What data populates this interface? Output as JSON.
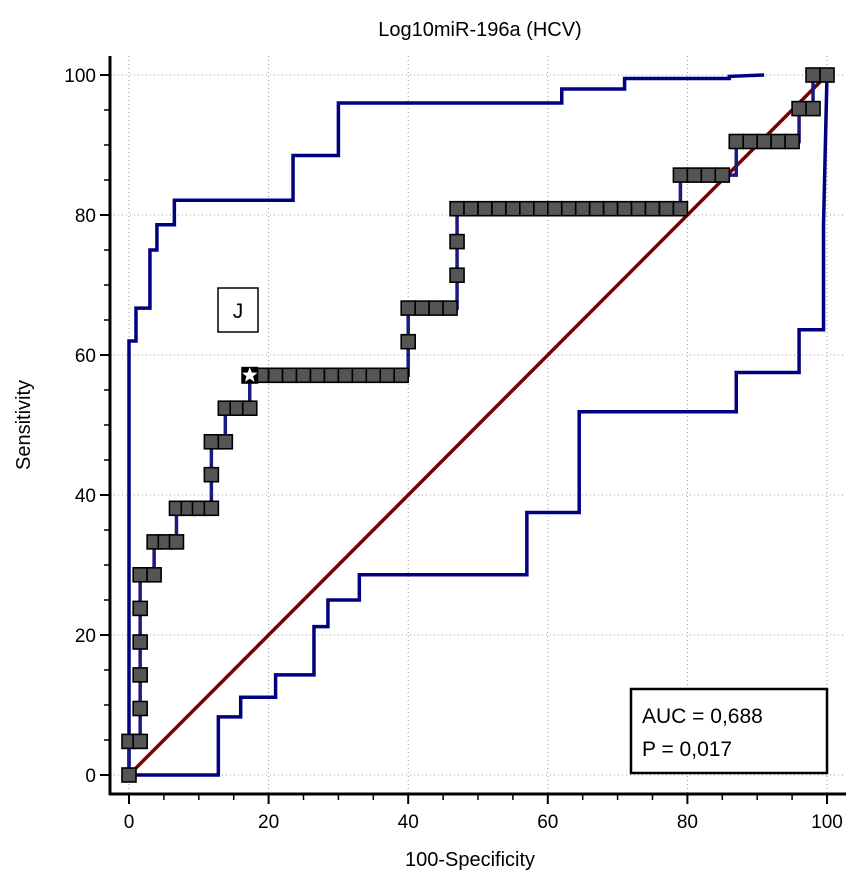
{
  "chart_data": {
    "type": "line",
    "title": "Log10miR-196a (HCV)",
    "xlabel": "100-Specificity",
    "ylabel": "Sensitivity",
    "xlim": [
      0,
      100
    ],
    "ylim": [
      0,
      100
    ],
    "x_ticks": [
      "0",
      "20",
      "40",
      "60",
      "80",
      "100"
    ],
    "y_ticks": [
      "0",
      "20",
      "40",
      "60",
      "80",
      "100"
    ],
    "grid": true,
    "panel_label": "J",
    "stats": [
      "AUC = 0,688",
      "P = 0,017"
    ],
    "colors": {
      "roc": "#1a1a80",
      "ci": "#000080",
      "diagonal": "#7a0000",
      "marker": "#555555"
    },
    "series": [
      {
        "role": "roc-curve",
        "points": [
          [
            0,
            0
          ],
          [
            0,
            4.8
          ],
          [
            1.6,
            4.8
          ],
          [
            1.6,
            28.6
          ],
          [
            3.6,
            28.6
          ],
          [
            3.6,
            33.3
          ],
          [
            6.8,
            33.3
          ],
          [
            6.8,
            38.1
          ],
          [
            11.8,
            38.1
          ],
          [
            11.8,
            47.6
          ],
          [
            13.8,
            47.6
          ],
          [
            13.8,
            52.4
          ],
          [
            17.3,
            52.4
          ],
          [
            17.3,
            57.1
          ],
          [
            40,
            57.1
          ],
          [
            40,
            66.7
          ],
          [
            47,
            66.7
          ],
          [
            47,
            80.9
          ],
          [
            79,
            80.9
          ],
          [
            79,
            85.7
          ],
          [
            87,
            85.7
          ],
          [
            87,
            90.5
          ],
          [
            96,
            90.5
          ],
          [
            96,
            95.2
          ],
          [
            98,
            95.2
          ],
          [
            98,
            100
          ],
          [
            100,
            100
          ]
        ]
      },
      {
        "role": "ci-upper",
        "points": [
          [
            0,
            0
          ],
          [
            0,
            62
          ],
          [
            1,
            62
          ],
          [
            1,
            66.7
          ],
          [
            3,
            66.7
          ],
          [
            3,
            75
          ],
          [
            4,
            75
          ],
          [
            4,
            78.6
          ],
          [
            6.5,
            78.6
          ],
          [
            6.5,
            82.1
          ],
          [
            23.5,
            82.1
          ],
          [
            23.5,
            88.5
          ],
          [
            30,
            88.5
          ],
          [
            30,
            96
          ],
          [
            62,
            96
          ],
          [
            62,
            98
          ],
          [
            71,
            98
          ],
          [
            71,
            99.5
          ],
          [
            86,
            99.5
          ],
          [
            86,
            99.8
          ],
          [
            91,
            100
          ]
        ]
      },
      {
        "role": "ci-lower",
        "points": [
          [
            0,
            0
          ],
          [
            12.8,
            0
          ],
          [
            12.8,
            8.3
          ],
          [
            16,
            8.3
          ],
          [
            16,
            11.1
          ],
          [
            21,
            11.1
          ],
          [
            21,
            14.3
          ],
          [
            26.5,
            14.3
          ],
          [
            26.5,
            21.2
          ],
          [
            28.5,
            21.2
          ],
          [
            28.5,
            25
          ],
          [
            33,
            25
          ],
          [
            33,
            28.6
          ],
          [
            57,
            28.6
          ],
          [
            57,
            37.5
          ],
          [
            64.5,
            37.5
          ],
          [
            64.5,
            51.9
          ],
          [
            87,
            51.9
          ],
          [
            87,
            57.5
          ],
          [
            96,
            57.5
          ],
          [
            96,
            63.6
          ],
          [
            99.5,
            63.6
          ],
          [
            99.5,
            78.6
          ],
          [
            100,
            100
          ]
        ]
      },
      {
        "role": "reference-line",
        "points": [
          [
            0,
            0
          ],
          [
            100,
            100
          ]
        ]
      }
    ],
    "markers": [
      [
        0,
        0
      ],
      [
        0,
        4.8
      ],
      [
        1.6,
        4.8
      ],
      [
        1.6,
        9.5
      ],
      [
        1.6,
        14.3
      ],
      [
        1.6,
        19
      ],
      [
        1.6,
        23.8
      ],
      [
        1.6,
        28.6
      ],
      [
        3.6,
        28.6
      ],
      [
        3.6,
        33.3
      ],
      [
        5.2,
        33.3
      ],
      [
        6.8,
        33.3
      ],
      [
        6.8,
        38.1
      ],
      [
        8.5,
        38.1
      ],
      [
        10.1,
        38.1
      ],
      [
        11.8,
        38.1
      ],
      [
        11.8,
        42.9
      ],
      [
        11.8,
        47.6
      ],
      [
        13.8,
        47.6
      ],
      [
        13.8,
        52.4
      ],
      [
        15.5,
        52.4
      ],
      [
        17.3,
        52.4
      ],
      [
        19,
        57.1
      ],
      [
        21,
        57.1
      ],
      [
        23,
        57.1
      ],
      [
        25,
        57.1
      ],
      [
        27,
        57.1
      ],
      [
        29,
        57.1
      ],
      [
        31,
        57.1
      ],
      [
        33,
        57.1
      ],
      [
        35,
        57.1
      ],
      [
        37,
        57.1
      ],
      [
        39,
        57.1
      ],
      [
        40,
        61.9
      ],
      [
        40,
        66.7
      ],
      [
        42,
        66.7
      ],
      [
        44,
        66.7
      ],
      [
        46,
        66.7
      ],
      [
        47,
        71.4
      ],
      [
        47,
        76.2
      ],
      [
        47,
        80.9
      ],
      [
        49,
        80.9
      ],
      [
        51,
        80.9
      ],
      [
        53,
        80.9
      ],
      [
        55,
        80.9
      ],
      [
        57,
        80.9
      ],
      [
        59,
        80.9
      ],
      [
        61,
        80.9
      ],
      [
        63,
        80.9
      ],
      [
        65,
        80.9
      ],
      [
        67,
        80.9
      ],
      [
        69,
        80.9
      ],
      [
        71,
        80.9
      ],
      [
        73,
        80.9
      ],
      [
        75,
        80.9
      ],
      [
        77,
        80.9
      ],
      [
        79,
        80.9
      ],
      [
        79,
        85.7
      ],
      [
        81,
        85.7
      ],
      [
        83,
        85.7
      ],
      [
        85,
        85.7
      ],
      [
        87,
        90.5
      ],
      [
        89,
        90.5
      ],
      [
        91,
        90.5
      ],
      [
        93,
        90.5
      ],
      [
        95,
        90.5
      ],
      [
        96,
        95.2
      ],
      [
        98,
        95.2
      ],
      [
        98,
        100
      ],
      [
        100,
        100
      ]
    ],
    "optimal_point": [
      17.3,
      57.1
    ]
  }
}
